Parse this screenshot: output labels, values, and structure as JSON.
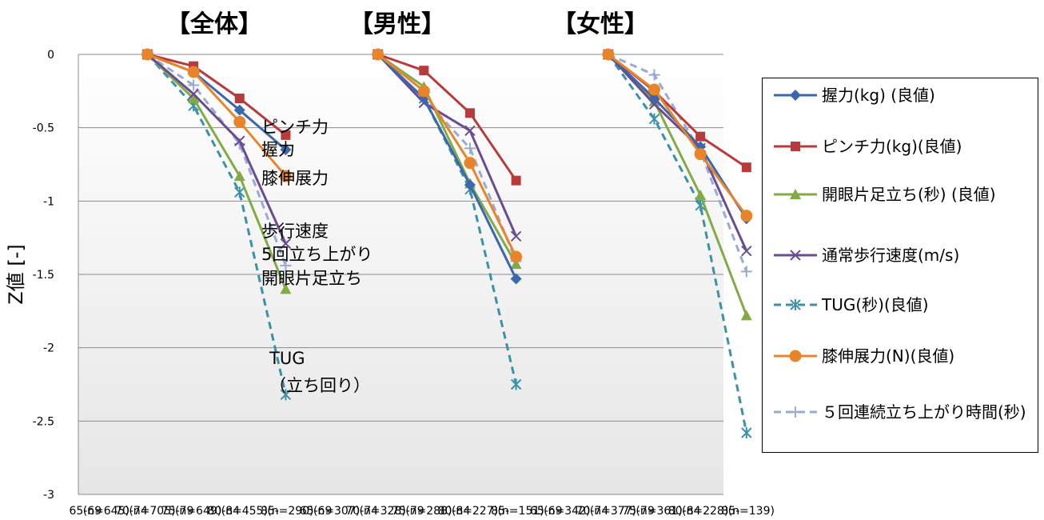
{
  "chart_data": {
    "type": "line",
    "ylabel": "Z値 [-]",
    "ylim": [
      -3,
      0
    ],
    "yticks": [
      "0",
      "-0.5",
      "-1",
      "-1.5",
      "-2",
      "-2.5",
      "-3"
    ],
    "grid": true,
    "legend_position": "right",
    "x_tick_labels": [
      "65-69",
      "70-74",
      "75-79",
      "80-84",
      "85-",
      "65-69",
      "70-74",
      "75-79",
      "80-84",
      "85-",
      "65-69",
      "70-74",
      "75-79",
      "80-84",
      "85-"
    ],
    "x_count_labels": [
      "(n=645)",
      "(n=705)",
      "(n=649)",
      "(n=455)",
      "(n=290)",
      "(n=307)",
      "(n=328)",
      "(n=288)",
      "(n=227)",
      "(n=151)",
      "(n=342)",
      "(n=377)",
      "(n=361)",
      "(n=228)",
      "(n=139)"
    ],
    "series": [
      {
        "name": "握力(kg) (良値)",
        "color": "#3a67b0",
        "marker": "diamond",
        "dash": false,
        "values": [
          [
            0,
            -0.12,
            -0.38,
            -0.65
          ],
          [
            0,
            -0.3,
            -0.89,
            -1.53
          ],
          [
            0,
            -0.3,
            -0.63,
            -1.12
          ]
        ]
      },
      {
        "name": "ピンチ力(kg)(良値)",
        "color": "#b83b3b",
        "marker": "square",
        "dash": false,
        "values": [
          [
            0,
            -0.08,
            -0.3,
            -0.55
          ],
          [
            0,
            -0.11,
            -0.4,
            -0.86
          ],
          [
            0,
            -0.25,
            -0.56,
            -0.77
          ]
        ]
      },
      {
        "name": "開眼片足立ち(秒) (良値)",
        "color": "#82ab45",
        "marker": "triangle",
        "dash": false,
        "values": [
          [
            0,
            -0.3,
            -0.83,
            -1.6
          ],
          [
            0,
            -0.22,
            -0.88,
            -1.43
          ],
          [
            0,
            -0.32,
            -0.96,
            -1.78
          ]
        ]
      },
      {
        "name": "通常歩行速度(m/s)",
        "color": "#6a4c93",
        "marker": "x",
        "dash": false,
        "values": [
          [
            0,
            -0.27,
            -0.59,
            -1.29
          ],
          [
            0,
            -0.33,
            -0.52,
            -1.24
          ],
          [
            0,
            -0.34,
            -0.64,
            -1.34
          ]
        ]
      },
      {
        "name": "TUG(秒)(良値)",
        "color": "#3b91a8",
        "marker": "star",
        "dash": true,
        "values": [
          [
            0,
            -0.35,
            -0.94,
            -2.32
          ],
          [
            0,
            -0.3,
            -0.92,
            -2.25
          ],
          [
            0,
            -0.44,
            -1.03,
            -2.58
          ]
        ]
      },
      {
        "name": "膝伸展力(N)(良値)",
        "color": "#e8852a",
        "marker": "circle",
        "dash": false,
        "values": [
          [
            0,
            -0.12,
            -0.46,
            -0.83
          ],
          [
            0,
            -0.25,
            -0.74,
            -1.38
          ],
          [
            0,
            -0.24,
            -0.68,
            -1.1
          ]
        ]
      },
      {
        "name": "５回連続立ち上がり時間(秒)",
        "color": "#98abd4",
        "marker": "plus",
        "dash": true,
        "values": [
          [
            0,
            -0.21,
            -0.61,
            -1.44
          ],
          [
            0,
            -0.3,
            -0.64,
            -1.41
          ],
          [
            0,
            -0.14,
            -0.66,
            -1.48
          ]
        ]
      }
    ],
    "panels": [
      {
        "title": "【全体】"
      },
      {
        "title": "【男性】"
      },
      {
        "title": "【女性】"
      }
    ],
    "annotations": [
      {
        "text": "ピンチ力"
      },
      {
        "text": "握力"
      },
      {
        "text": "膝伸展力"
      },
      {
        "text": "歩行速度"
      },
      {
        "text": "5回立ち上がり"
      },
      {
        "text": "開眼片足立ち"
      },
      {
        "text": "TUG"
      },
      {
        "text": "（立ち回り）"
      }
    ]
  }
}
